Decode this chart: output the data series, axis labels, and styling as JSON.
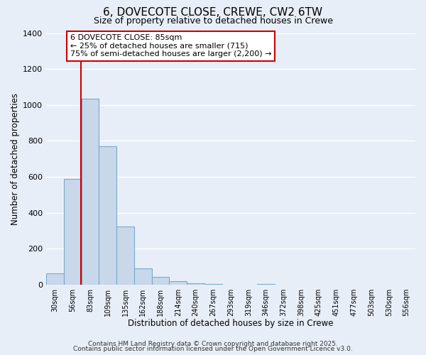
{
  "title": "6, DOVECOTE CLOSE, CREWE, CW2 6TW",
  "subtitle": "Size of property relative to detached houses in Crewe",
  "xlabel": "Distribution of detached houses by size in Crewe",
  "ylabel": "Number of detached properties",
  "bar_color": "#c8d8ea",
  "bar_edge_color": "#7aaac8",
  "background_color": "#e8eef8",
  "grid_color": "#ffffff",
  "categories": [
    "30sqm",
    "56sqm",
    "83sqm",
    "109sqm",
    "135sqm",
    "162sqm",
    "188sqm",
    "214sqm",
    "240sqm",
    "267sqm",
    "293sqm",
    "319sqm",
    "346sqm",
    "372sqm",
    "398sqm",
    "425sqm",
    "451sqm",
    "477sqm",
    "503sqm",
    "530sqm",
    "556sqm"
  ],
  "values": [
    65,
    590,
    1035,
    770,
    325,
    90,
    42,
    20,
    8,
    3,
    0,
    0,
    5,
    0,
    0,
    0,
    0,
    0,
    0,
    0,
    0
  ],
  "ylim": [
    0,
    1400
  ],
  "yticks": [
    0,
    200,
    400,
    600,
    800,
    1000,
    1200,
    1400
  ],
  "property_line_color": "#cc0000",
  "annotation_title": "6 DOVECOTE CLOSE: 85sqm",
  "annotation_line1": "← 25% of detached houses are smaller (715)",
  "annotation_line2": "75% of semi-detached houses are larger (2,200) →",
  "annotation_box_edge": "#cc0000",
  "footer1": "Contains HM Land Registry data © Crown copyright and database right 2025.",
  "footer2": "Contains public sector information licensed under the Open Government Licence v3.0."
}
